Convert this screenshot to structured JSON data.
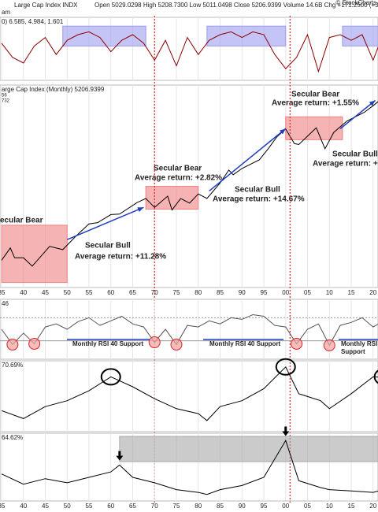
{
  "header": {
    "symbol": "Large Cap Index  INDX",
    "quote": "Open 5029.0298  High 5208.7300  Low 5011.0498  Close 5206.9399  Volume 14.6B  Chg +171.2500 (+3.40%)",
    "time": "am",
    "brand": "© StockCharts"
  },
  "chart_data": [
    {
      "type": "line",
      "title": "0) 6.585, 4.984, 1.601",
      "ylim": [
        -10,
        10
      ],
      "x": [
        1935,
        1937.5,
        1940,
        1942.5,
        1945,
        1947.5,
        1950,
        1952.5,
        1955,
        1957.5,
        1960,
        1962.5,
        1965,
        1967.5,
        1970,
        1972.5,
        1975,
        1977.5,
        1980,
        1982.5,
        1985,
        1987.5,
        1990,
        1992.5,
        1995,
        1997.5,
        2000,
        2002.5,
        2005,
        2007.5,
        2010,
        2012.5,
        2015,
        2017.5,
        2020,
        2022.5,
        2024
      ],
      "series": [
        {
          "color": "#8b0000",
          "values": [
            2,
            -3,
            -5,
            1,
            4,
            -2,
            3,
            5,
            6,
            4,
            -1,
            3,
            5,
            2,
            -4,
            3,
            -6,
            4,
            -2,
            3,
            5,
            6,
            4,
            6,
            5,
            -2,
            -7,
            -3,
            5,
            -8,
            4,
            5,
            3,
            5,
            -4,
            6,
            4
          ]
        }
      ],
      "zones": [
        {
          "x0": 1949,
          "x1": 1968,
          "lo": 1,
          "hi": 8
        },
        {
          "x0": 1982,
          "x1": 2000,
          "lo": 1,
          "hi": 8
        },
        {
          "x0": 2013,
          "x1": 2025,
          "lo": 1,
          "hi": 8
        }
      ],
      "zone_color": "#9c9cf0"
    },
    {
      "type": "line",
      "title": "arge Cap Index (Monthly) 5206.9399",
      "subtitle": [
        "56",
        "732"
      ],
      "log": true,
      "ylim": [
        4,
        7000
      ],
      "x": [
        1935,
        1937,
        1938,
        1940,
        1942,
        1946,
        1949,
        1952,
        1955,
        1957,
        1960,
        1962,
        1966,
        1968,
        1970,
        1973,
        1974,
        1976,
        1978,
        1980,
        1982,
        1985,
        1987,
        1988,
        1990,
        1994,
        1996,
        1998,
        2000,
        2002,
        2003,
        2007,
        2009,
        2011,
        2014,
        2018,
        2020,
        2022,
        2022.8,
        2024
      ],
      "series": [
        {
          "color": "#000000",
          "values": [
            10,
            16,
            11,
            11,
            8,
            17,
            15,
            25,
            40,
            42,
            57,
            58,
            90,
            105,
            75,
            115,
            68,
            105,
            88,
            125,
            105,
            190,
            310,
            260,
            330,
            460,
            700,
            1100,
            1480,
            850,
            820,
            1550,
            700,
            1300,
            2000,
            2800,
            3600,
            4700,
            3600,
            5200
          ]
        }
      ],
      "zones": [
        {
          "x0": 1935,
          "x1": 1950,
          "lo": 4.3,
          "hi": 38
        },
        {
          "x0": 1968,
          "x1": 1980,
          "lo": 70,
          "hi": 167
        },
        {
          "x0": 2000,
          "x1": 2013,
          "lo": 986,
          "hi": 2355
        }
      ],
      "zone_color": "#f08080",
      "trend_lines": [
        {
          "x0": 1950,
          "y0": 22,
          "x1": 1967.5,
          "y1": 75
        },
        {
          "x1": 2000,
          "y1": 1500,
          "x0": 1982.5,
          "y0": 140
        },
        {
          "x0": 2012.5,
          "y0": 1500,
          "x1": 2020.5,
          "y1": 4400
        }
      ],
      "annotations": [
        {
          "text": "ecular Bear",
          "color": "#d62728"
        },
        {
          "text": "Secular Bull",
          "color": "#1f3fbf"
        },
        {
          "text": "Average return:  +11.28%",
          "color": "#1f3fbf"
        },
        {
          "text": "Secular Bear",
          "color": "#d62728"
        },
        {
          "text": "Average return:  +2.82%",
          "color": "#d62728"
        },
        {
          "text": "Secular Bull",
          "color": "#1f3fbf"
        },
        {
          "text": "Average return:  +14.67%",
          "color": "#1f3fbf"
        },
        {
          "text": "Secular Bear",
          "color": "#d62728"
        },
        {
          "text": "Average return:  +1.55%",
          "color": "#d62728"
        },
        {
          "text": "Secular Bull",
          "color": "#1f3fbf"
        },
        {
          "text": "Average return:  +",
          "color": "#1f3fbf"
        }
      ],
      "xticks": [
        {
          "value": 1935,
          "label": "35"
        },
        {
          "value": 1940,
          "label": "40"
        },
        {
          "value": 1945,
          "label": "45"
        },
        {
          "value": 1950,
          "label": "50"
        },
        {
          "value": 1955,
          "label": "55"
        },
        {
          "value": 1960,
          "label": "60"
        },
        {
          "value": 1965,
          "label": "65"
        },
        {
          "value": 1970,
          "label": "70"
        },
        {
          "value": 1975,
          "label": "75"
        },
        {
          "value": 1980,
          "label": "80"
        },
        {
          "value": 1985,
          "label": "85"
        },
        {
          "value": 1990,
          "label": "90"
        },
        {
          "value": 1995,
          "label": "95"
        },
        {
          "value": 2000,
          "label": "00"
        },
        {
          "value": 2005,
          "label": "05"
        },
        {
          "value": 2010,
          "label": "10"
        },
        {
          "value": 2015,
          "label": "15"
        },
        {
          "value": 2020,
          "label": "20"
        }
      ],
      "cycle_lines": [
        1970,
        2001
      ]
    },
    {
      "type": "line",
      "title": "46",
      "ylim": [
        20,
        90
      ],
      "ref_lines": [
        40,
        70
      ],
      "x": [
        1935,
        1937.5,
        1940,
        1942.5,
        1945,
        1947.5,
        1950,
        1952.5,
        1955,
        1957.5,
        1960,
        1962.5,
        1965,
        1967.5,
        1970,
        1972.5,
        1975,
        1977.5,
        1980,
        1982.5,
        1985,
        1987.5,
        1990,
        1992.5,
        1995,
        1997.5,
        2000,
        2002.5,
        2005,
        2007.5,
        2010,
        2012.5,
        2015,
        2017.5,
        2020,
        2022.5,
        2024
      ],
      "series": [
        {
          "color": "#555555",
          "values": [
            55,
            35,
            50,
            36,
            58,
            62,
            55,
            65,
            70,
            60,
            66,
            72,
            62,
            58,
            38,
            55,
            35,
            60,
            58,
            66,
            62,
            70,
            68,
            74,
            72,
            60,
            58,
            36,
            55,
            62,
            34,
            60,
            64,
            70,
            58,
            66,
            72
          ]
        }
      ],
      "highlights": [
        {
          "x": 1937.5,
          "y": 35
        },
        {
          "x": 1942.5,
          "y": 36
        },
        {
          "x": 1970,
          "y": 38
        },
        {
          "x": 1975,
          "y": 35
        },
        {
          "x": 2002.5,
          "y": 36
        },
        {
          "x": 2010,
          "y": 34
        }
      ],
      "annotations": [
        {
          "text": "Monthly RSI 40 Support",
          "color": "#1f3fbf"
        },
        {
          "text": "Monthly RSI 40 Support",
          "color": "#1f3fbf"
        },
        {
          "text": "Monthly RSI 40",
          "color": "#1f3fbf"
        },
        {
          "text": "Support",
          "color": "#1f3fbf"
        }
      ]
    },
    {
      "type": "line",
      "title": "70.69%",
      "ylim": [
        20,
        85
      ],
      "x": [
        1935,
        1940,
        1945,
        1950,
        1955,
        1960,
        1965,
        1970,
        1975,
        1980,
        1982,
        1985,
        1990,
        1995,
        2000,
        2003,
        2008,
        2010,
        2015,
        2020,
        2024
      ],
      "series": [
        {
          "color": "#000000",
          "values": [
            38,
            30,
            42,
            48,
            58,
            72,
            62,
            50,
            40,
            35,
            28,
            42,
            48,
            60,
            82,
            55,
            48,
            40,
            55,
            72,
            71
          ]
        }
      ],
      "highlights": [
        {
          "x": 1960,
          "y": 72
        },
        {
          "x": 2000,
          "y": 82
        },
        {
          "x": 2022.5,
          "y": 72
        }
      ]
    },
    {
      "type": "line",
      "title": "64.62%",
      "ylim": [
        0,
        90
      ],
      "x": [
        1935,
        1940,
        1945,
        1950,
        1955,
        1960,
        1962,
        1965,
        1970,
        1975,
        1980,
        1982,
        1985,
        1990,
        1995,
        2000,
        2003,
        2008,
        2010,
        2015,
        2020,
        2024
      ],
      "series": [
        {
          "color": "#000000",
          "values": [
            35,
            20,
            28,
            22,
            30,
            38,
            48,
            30,
            22,
            12,
            8,
            5,
            12,
            18,
            30,
            84,
            25,
            15,
            12,
            10,
            8,
            15
          ]
        }
      ],
      "zones": [
        {
          "x0": 1962,
          "x1": 2025,
          "lo": 53,
          "hi": 90
        }
      ],
      "zone_color": "#a9a9a9",
      "markers": [
        {
          "x": 1962,
          "y": 50
        },
        {
          "x": 2000,
          "y": 86
        }
      ],
      "xticks": [
        {
          "value": 1935,
          "label": "35"
        },
        {
          "value": 1940,
          "label": "40"
        },
        {
          "value": 1945,
          "label": "45"
        },
        {
          "value": 1950,
          "label": "50"
        },
        {
          "value": 1955,
          "label": "55"
        },
        {
          "value": 1960,
          "label": "60"
        },
        {
          "value": 1965,
          "label": "65"
        },
        {
          "value": 1970,
          "label": "70"
        },
        {
          "value": 1975,
          "label": "75"
        },
        {
          "value": 1980,
          "label": "80"
        },
        {
          "value": 1985,
          "label": "85"
        },
        {
          "value": 1990,
          "label": "90"
        },
        {
          "value": 1995,
          "label": "95"
        },
        {
          "value": 2000,
          "label": "00"
        },
        {
          "value": 2005,
          "label": "05"
        },
        {
          "value": 2010,
          "label": "10"
        },
        {
          "value": 2015,
          "label": "15"
        },
        {
          "value": 2020,
          "label": "20"
        }
      ]
    }
  ]
}
